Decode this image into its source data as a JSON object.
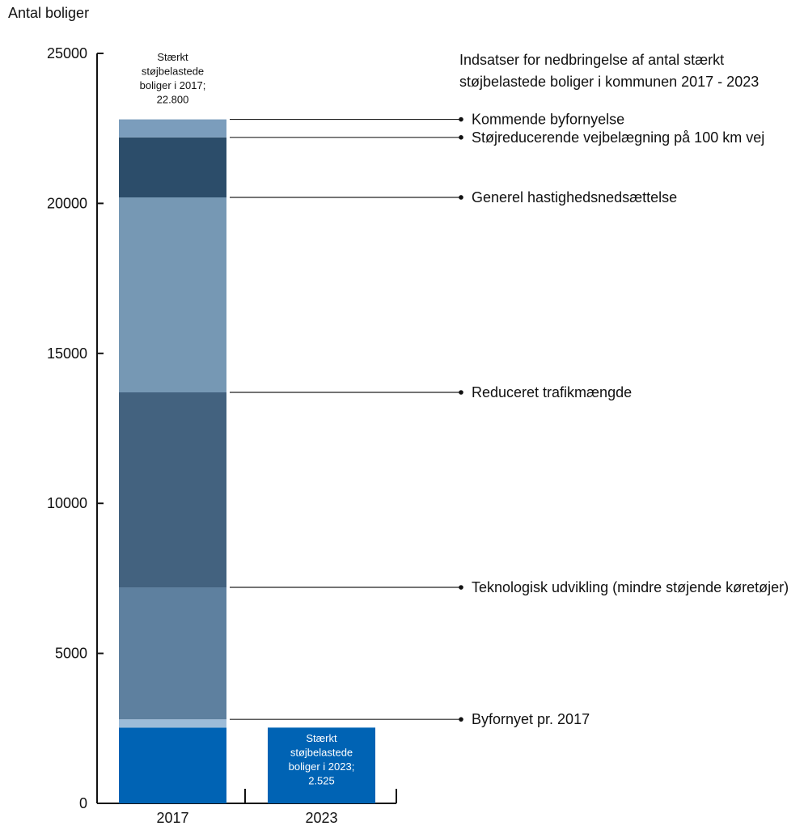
{
  "chart_data": {
    "type": "bar",
    "stacked": true,
    "title_lines": [
      "Indsatser for nedbringelse af antal stærkt",
      "støjbelastede boliger i kommunen 2017 - 2023"
    ],
    "ylabel": "Antal boliger",
    "xlabel": "",
    "ylim": [
      0,
      25000
    ],
    "yticks": [
      0,
      5000,
      10000,
      15000,
      20000,
      25000
    ],
    "grid": false,
    "categories": [
      "2017",
      "2023"
    ],
    "segments_2017": [
      {
        "name": "Stærkt støjbelastede boliger 2023",
        "from": 0,
        "to": 2525,
        "color": "#0063b4"
      },
      {
        "name": "Byfornyet pr. 2017",
        "from": 2525,
        "to": 2800,
        "color": "#9dbcd8"
      },
      {
        "name": "Teknologisk udvikling (mindre støjende køretøjer)",
        "from": 2800,
        "to": 7200,
        "color": "#5e809f"
      },
      {
        "name": "Reduceret trafikmængde",
        "from": 7200,
        "to": 13700,
        "color": "#43627f"
      },
      {
        "name": "Generel hastighedsnedsættelse",
        "from": 13700,
        "to": 20200,
        "color": "#7698b4"
      },
      {
        "name": "Støjreducerende vejbelægning på 100 km vej",
        "from": 20200,
        "to": 22200,
        "color": "#2c4d6a"
      },
      {
        "name": "Kommende byfornyelse",
        "from": 22200,
        "to": 22800,
        "color": "#7b9dbc"
      }
    ],
    "bar_2023": {
      "value": 2525,
      "color": "#0063b4"
    },
    "annotations": [
      {
        "label": "Kommende byfornyelse",
        "y": 22800
      },
      {
        "label": "Støjreducerende vejbelægning på 100 km vej",
        "y": 22200
      },
      {
        "label": "Generel hastighedsnedsættelse",
        "y": 20200
      },
      {
        "label": "Reduceret trafikmængde",
        "y": 13700
      },
      {
        "label": "Teknologisk udvikling (mindre støjende køretøjer)",
        "y": 7200
      },
      {
        "label": "Byfornyet pr. 2017",
        "y": 2800
      }
    ],
    "label_2017": [
      "Stærkt",
      "støjbelastede",
      "boliger i 2017;",
      "22.800"
    ],
    "label_2023": [
      "Stærkt",
      "støjbelastede",
      "boliger i 2023;",
      "2.525"
    ]
  }
}
